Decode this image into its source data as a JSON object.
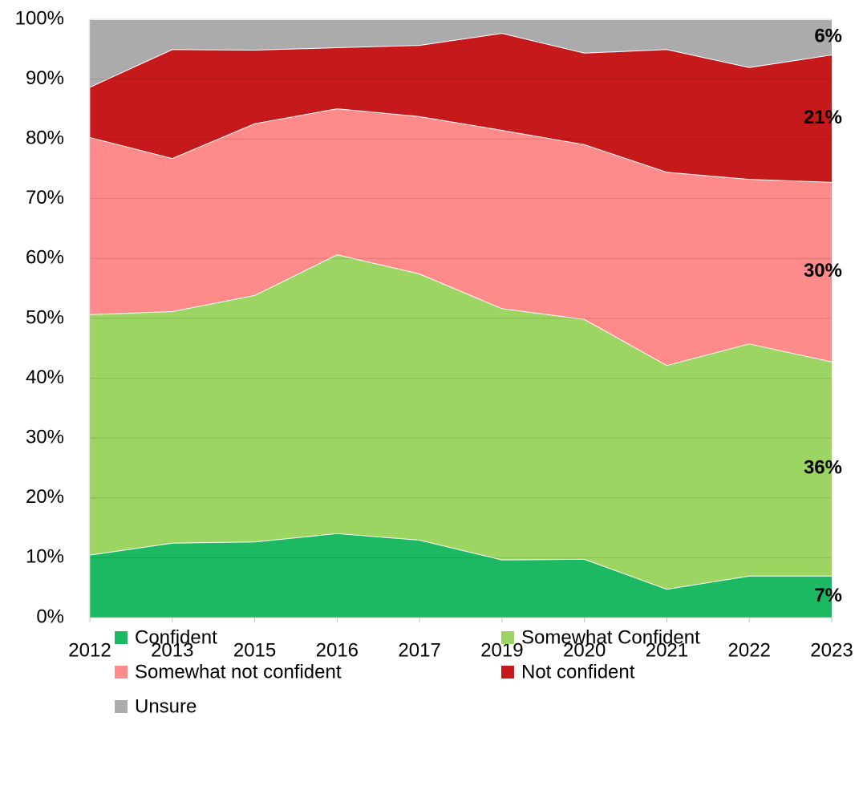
{
  "chart_data": {
    "type": "stacked_area",
    "categories": [
      "2012",
      "2013",
      "2015",
      "2016",
      "2017",
      "2019",
      "2020",
      "2021",
      "2022",
      "2023"
    ],
    "series": [
      {
        "name": "Confident",
        "color": "#1db862",
        "values": [
          10.5,
          12.5,
          12.7,
          14.1,
          13.0,
          9.7,
          9.8,
          4.8,
          7.0,
          7.0
        ],
        "value_labels": [
          null,
          null,
          null,
          null,
          null,
          null,
          null,
          null,
          null,
          "7%"
        ]
      },
      {
        "name": "Somewhat Confident",
        "color": "#9dd563",
        "values": [
          40.2,
          38.7,
          41.2,
          46.6,
          44.5,
          42.0,
          40.1,
          37.4,
          38.8,
          35.8
        ],
        "value_labels": [
          null,
          null,
          null,
          null,
          null,
          null,
          null,
          null,
          null,
          "36%"
        ]
      },
      {
        "name": "Somewhat not confident",
        "color": "#ff8a8a",
        "values": [
          29.6,
          25.6,
          28.7,
          24.4,
          26.3,
          29.8,
          29.2,
          32.3,
          27.5,
          30.0
        ],
        "value_labels": [
          null,
          null,
          null,
          null,
          null,
          null,
          null,
          null,
          null,
          "30%"
        ]
      },
      {
        "name": "Not confident",
        "color": "#c5191b",
        "values": [
          8.4,
          18.2,
          12.3,
          10.2,
          11.9,
          16.2,
          15.3,
          20.5,
          18.7,
          21.3
        ],
        "value_labels": [
          null,
          null,
          null,
          null,
          null,
          null,
          null,
          null,
          null,
          "21%"
        ]
      },
      {
        "name": "Unsure",
        "color": "#ababab",
        "values": [
          11.3,
          5.0,
          5.1,
          4.7,
          4.3,
          2.3,
          5.6,
          5.0,
          8.0,
          5.9
        ],
        "value_labels": [
          null,
          null,
          null,
          null,
          null,
          null,
          null,
          null,
          null,
          "6%"
        ]
      }
    ],
    "ylim": [
      0,
      100
    ],
    "yticks": [
      {
        "value": 0,
        "label": "0%"
      },
      {
        "value": 10,
        "label": "10%"
      },
      {
        "value": 20,
        "label": "20%"
      },
      {
        "value": 30,
        "label": "30%"
      },
      {
        "value": 40,
        "label": "40%"
      },
      {
        "value": 50,
        "label": "50%"
      },
      {
        "value": 60,
        "label": "60%"
      },
      {
        "value": 70,
        "label": "70%"
      },
      {
        "value": 80,
        "label": "80%"
      },
      {
        "value": 90,
        "label": "90%"
      },
      {
        "value": 100,
        "label": "100%"
      }
    ],
    "grid": true
  }
}
